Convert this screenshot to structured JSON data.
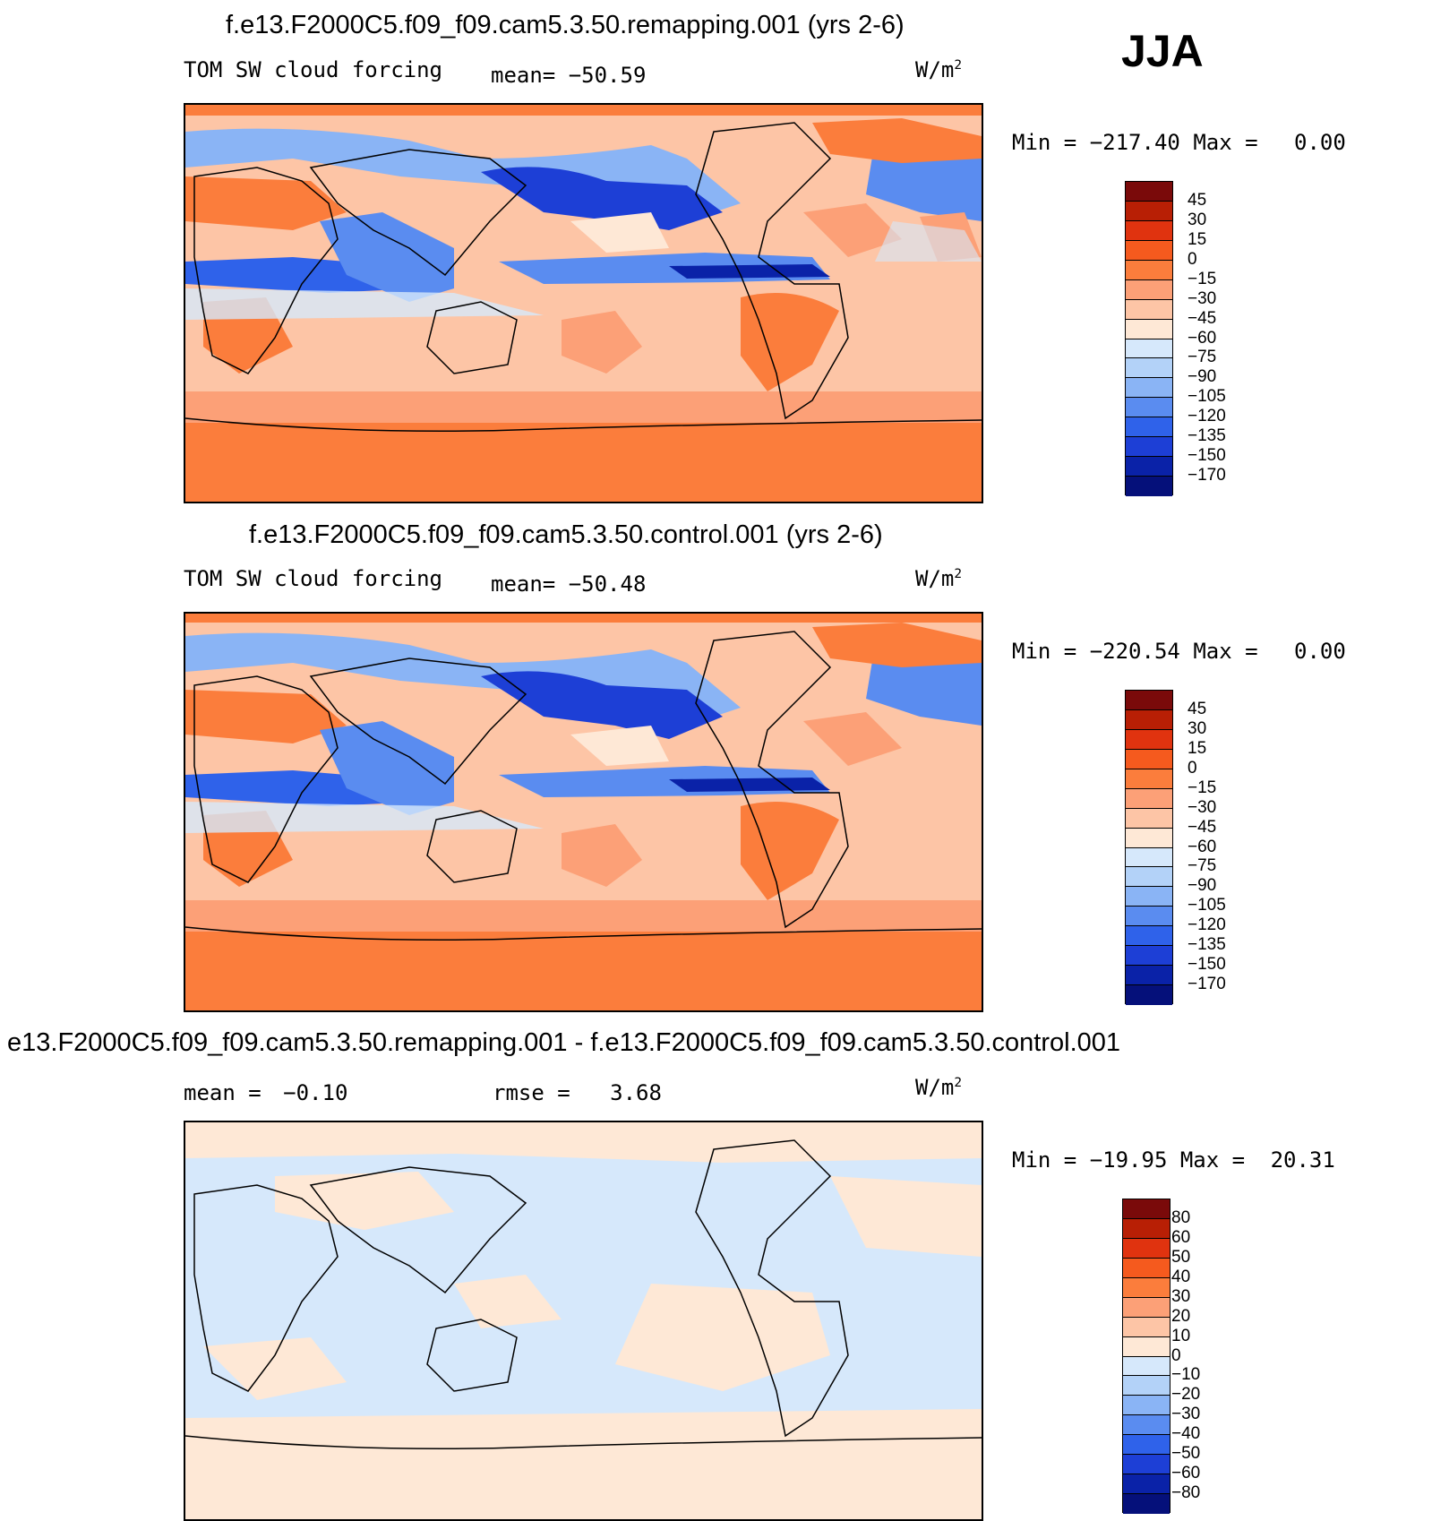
{
  "season": "JJA",
  "panels": [
    {
      "title": "f.e13.F2000C5.f09_f09.cam5.3.50.remapping.001 (yrs 2-6)",
      "left_label": "TOM SW cloud forcing",
      "stat_label": "mean=",
      "stat_value": "−50.59",
      "units": "W/m",
      "units_sup": "2",
      "min_label": "Min = ",
      "min_value": "−217.40",
      "max_label": "Max = ",
      "max_value": "0.00",
      "colorbar_labels": [
        "45",
        "30",
        "15",
        "0",
        "−15",
        "−30",
        "−45",
        "−60",
        "−75",
        "−90",
        "−105",
        "−120",
        "−135",
        "−150",
        "−170"
      ]
    },
    {
      "title": "f.e13.F2000C5.f09_f09.cam5.3.50.control.001 (yrs 2-6)",
      "left_label": "TOM SW cloud forcing",
      "stat_label": "mean=",
      "stat_value": "−50.48",
      "units": "W/m",
      "units_sup": "2",
      "min_label": "Min = ",
      "min_value": "−220.54",
      "max_label": "Max = ",
      "max_value": "0.00",
      "colorbar_labels": [
        "45",
        "30",
        "15",
        "0",
        "−15",
        "−30",
        "−45",
        "−60",
        "−75",
        "−90",
        "−105",
        "−120",
        "−135",
        "−150",
        "−170"
      ]
    },
    {
      "title": "e13.F2000C5.f09_f09.cam5.3.50.remapping.001 - f.e13.F2000C5.f09_f09.cam5.3.50.control.001",
      "left_label": "mean = ",
      "left_value": "−0.10",
      "stat_label": "rmse = ",
      "stat_value": "3.68",
      "units": "W/m",
      "units_sup": "2",
      "min_label": "Min = ",
      "min_value": "−19.95",
      "max_label": "Max = ",
      "max_value": "20.31",
      "colorbar_labels": [
        "80",
        "60",
        "50",
        "40",
        "30",
        "20",
        "10",
        "0",
        "−10",
        "−20",
        "−30",
        "−40",
        "−50",
        "−60",
        "−80"
      ]
    }
  ],
  "colors": {
    "scale": [
      "#7a0a0a",
      "#b81f05",
      "#e0330f",
      "#f55a1e",
      "#fb7d3c",
      "#fca077",
      "#fdc5a6",
      "#fee8d6",
      "#d6e8fb",
      "#b3d2f8",
      "#8ab4f5",
      "#5a8cf0",
      "#2f62ea",
      "#1d3fd6",
      "#0a22a8",
      "#05107a"
    ],
    "ocean_main": "#fdc5a6",
    "diff_pos": "#fee8d6",
    "diff_neg": "#d6e8fb"
  },
  "chart_data": [
    {
      "type": "heatmap",
      "title": "f.e13.F2000C5.f09_f09.cam5.3.50.remapping.001 (yrs 2-6)",
      "variable": "TOM SW cloud forcing",
      "units": "W/m2",
      "season": "JJA",
      "mean": -50.59,
      "min": -217.4,
      "max": 0.0,
      "contour_levels": [
        -170,
        -150,
        -135,
        -120,
        -105,
        -90,
        -75,
        -60,
        -45,
        -30,
        -15,
        0,
        15,
        30,
        45
      ]
    },
    {
      "type": "heatmap",
      "title": "f.e13.F2000C5.f09_f09.cam5.3.50.control.001 (yrs 2-6)",
      "variable": "TOM SW cloud forcing",
      "units": "W/m2",
      "season": "JJA",
      "mean": -50.48,
      "min": -220.54,
      "max": 0.0,
      "contour_levels": [
        -170,
        -150,
        -135,
        -120,
        -105,
        -90,
        -75,
        -60,
        -45,
        -30,
        -15,
        0,
        15,
        30,
        45
      ]
    },
    {
      "type": "heatmap",
      "title": "e13.F2000C5.f09_f09.cam5.3.50.remapping.001 - f.e13.F2000C5.f09_f09.cam5.3.50.control.001",
      "units": "W/m2",
      "season": "JJA",
      "mean": -0.1,
      "rmse": 3.68,
      "min": -19.95,
      "max": 20.31,
      "contour_levels": [
        -80,
        -60,
        -50,
        -40,
        -30,
        -20,
        -10,
        0,
        10,
        20,
        30,
        40,
        50,
        60,
        80
      ]
    }
  ]
}
